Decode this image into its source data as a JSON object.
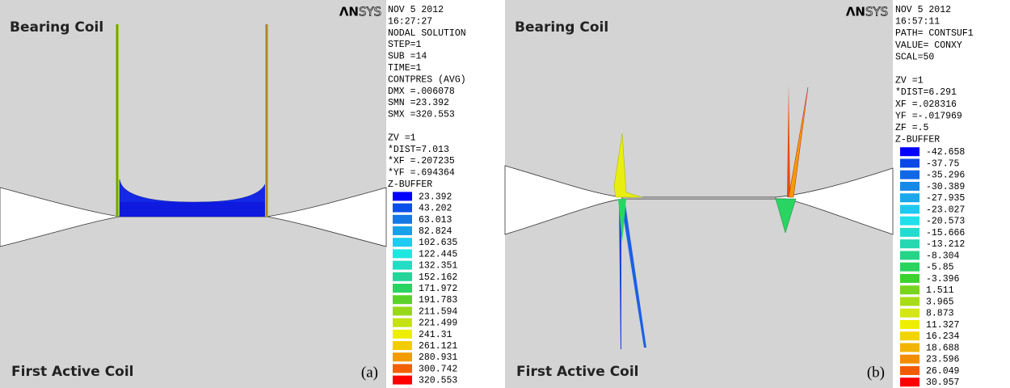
{
  "panels": [
    {
      "label": "(a)",
      "top_coil": "Bearing Coil",
      "bottom_coil": "First Active Coil",
      "logo": [
        "ΛN",
        "SYS"
      ],
      "info": [
        "NOV  5 2012",
        "16:27:27",
        "NODAL SOLUTION",
        "STEP=1",
        "SUB =14",
        "TIME=1",
        "CONTPRES (AVG)",
        "DMX =.006078",
        "SMN =23.392",
        "SMX =320.553"
      ],
      "view": [
        "ZV  =1",
        "*DIST=7.013",
        "*XF  =.207235",
        "*YF  =.694364",
        "Z-BUFFER"
      ],
      "legend": [
        {
          "value": "23.392",
          "color": "#0000ff"
        },
        {
          "value": "43.202",
          "color": "#0a4fe8"
        },
        {
          "value": "63.013",
          "color": "#1478e6"
        },
        {
          "value": "82.824",
          "color": "#19a0ea"
        },
        {
          "value": "102.635",
          "color": "#1ecbf2"
        },
        {
          "value": "122.445",
          "color": "#20e6e0"
        },
        {
          "value": "132.351",
          "color": "#24dcc4"
        },
        {
          "value": "152.162",
          "color": "#26d49a"
        },
        {
          "value": "171.972",
          "color": "#2ad462"
        },
        {
          "value": "191.783",
          "color": "#5ad22c"
        },
        {
          "value": "211.594",
          "color": "#98d81a"
        },
        {
          "value": "221.499",
          "color": "#c4e216"
        },
        {
          "value": "241.31",
          "color": "#eeee00"
        },
        {
          "value": "261.121",
          "color": "#f2cc00"
        },
        {
          "value": "280.931",
          "color": "#f29c00"
        },
        {
          "value": "300.742",
          "color": "#f26000"
        },
        {
          "value": "320.553",
          "color": "#ff0000"
        }
      ]
    },
    {
      "label": "(b)",
      "top_coil": "Bearing Coil",
      "bottom_coil": "First Active Coil",
      "logo": [
        "ΛN",
        "SYS"
      ],
      "info": [
        "NOV  5 2012",
        "16:57:11",
        "PATH= CONTSUF1",
        "VALUE= CONXY",
        "SCAL=50"
      ],
      "view": [
        "ZV  =1",
        "*DIST=6.291",
        " XF  =.028316",
        " YF  =-.017969",
        " ZF  =.5",
        "Z-BUFFER"
      ],
      "legend": [
        {
          "value": "-42.658",
          "color": "#0000ff"
        },
        {
          "value": "-37.75",
          "color": "#0a48e8"
        },
        {
          "value": "-35.296",
          "color": "#1068e6"
        },
        {
          "value": "-30.389",
          "color": "#1688e8"
        },
        {
          "value": "-27.935",
          "color": "#1aa8ec"
        },
        {
          "value": "-23.027",
          "color": "#1ec8f2"
        },
        {
          "value": "-20.573",
          "color": "#20e0ec"
        },
        {
          "value": "-15.666",
          "color": "#22dcd0"
        },
        {
          "value": "-13.212",
          "color": "#24d8b0"
        },
        {
          "value": "-8.304",
          "color": "#26d488"
        },
        {
          "value": "-5.85",
          "color": "#28d45c"
        },
        {
          "value": "-3.396",
          "color": "#3cd22e"
        },
        {
          "value": "1.511",
          "color": "#78d41e"
        },
        {
          "value": "3.965",
          "color": "#a8dc16"
        },
        {
          "value": "8.873",
          "color": "#d4e614"
        },
        {
          "value": "11.327",
          "color": "#eeee00"
        },
        {
          "value": "16.234",
          "color": "#f2d400"
        },
        {
          "value": "18.688",
          "color": "#f2b400"
        },
        {
          "value": "23.596",
          "color": "#f28c00"
        },
        {
          "value": "26.049",
          "color": "#f25a00"
        },
        {
          "value": "30.957",
          "color": "#ff0000"
        }
      ]
    }
  ]
}
